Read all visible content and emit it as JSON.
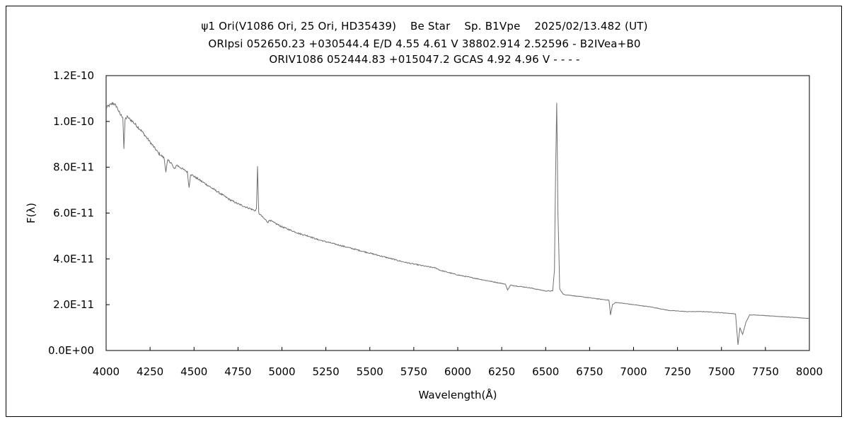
{
  "chart_data": {
    "type": "line",
    "title": "ψ1 Ori(V1086 Ori, 25 Ori, HD35439)    Be Star    Sp. B1Vpe    2025/02/13.482 (UT)",
    "subtitle_lines": [
      "ORIpsi 052650.23 +030544.4 E/D 4.55 4.61 V 38802.914 2.52596 - B2IVea+B0",
      "ORIV1086 052444.83 +015047.2 GCAS 4.92 4.96 V - - - -"
    ],
    "xlabel": "Wavelength(Å)",
    "ylabel": "F(λ)",
    "xlim": [
      4000,
      8000
    ],
    "ylim": [
      0,
      1.2e-10
    ],
    "x_ticks": [
      4000,
      4250,
      4500,
      4750,
      5000,
      5250,
      5500,
      5750,
      6000,
      6250,
      6500,
      6750,
      7000,
      7250,
      7500,
      7750,
      8000
    ],
    "x_tick_labels": [
      "4000",
      "4250",
      "4500",
      "4750",
      "5000",
      "5250",
      "5500",
      "5750",
      "6000",
      "6250",
      "6500",
      "6750",
      "7000",
      "7250",
      "7500",
      "7750",
      "8000"
    ],
    "y_ticks": [
      0,
      2e-11,
      4e-11,
      6e-11,
      8e-11,
      1e-10,
      1.2e-10
    ],
    "y_tick_labels": [
      "0.0E+00",
      "2.0E-11",
      "4.0E-11",
      "6.0E-11",
      "8.0E-11",
      "1.0E-10",
      "1.2E-10"
    ],
    "grid": false,
    "legend": "none",
    "line_color": "#707070",
    "series": [
      {
        "x": [
          4000,
          4020,
          4040,
          4060,
          4080,
          4095,
          4101,
          4108,
          4120,
          4150,
          4200,
          4250,
          4300,
          4330,
          4340,
          4350,
          4370,
          4388,
          4400,
          4440,
          4462,
          4472,
          4480,
          4500,
          4550,
          4600,
          4650,
          4700,
          4750,
          4800,
          4850,
          4855,
          4861,
          4868,
          4880,
          4900,
          4921,
          4930,
          4950,
          5000,
          5050,
          5100,
          5150,
          5200,
          5250,
          5300,
          5400,
          5500,
          5600,
          5700,
          5800,
          5876,
          5900,
          6000,
          6100,
          6200,
          6270,
          6284,
          6300,
          6400,
          6500,
          6540,
          6550,
          6556,
          6562.8,
          6570,
          6580,
          6600,
          6700,
          6800,
          6860,
          6869,
          6880,
          6900,
          7000,
          7100,
          7200,
          7300,
          7400,
          7500,
          7580,
          7594,
          7605,
          7620,
          7640,
          7660,
          7700,
          7800,
          7900,
          8000
        ],
        "y": [
          1.06e-10,
          1.07e-10,
          1.08e-10,
          1.065e-10,
          1.03e-10,
          1.02e-10,
          8.8e-11,
          1.01e-10,
          1.02e-10,
          1e-10,
          9.6e-11,
          9.1e-11,
          8.6e-11,
          8.4e-11,
          7.8e-11,
          8.3e-11,
          8.2e-11,
          7.9e-11,
          8.1e-11,
          7.9e-11,
          7.8e-11,
          7.1e-11,
          7.7e-11,
          7.6e-11,
          7.35e-11,
          7.1e-11,
          6.85e-11,
          6.6e-11,
          6.4e-11,
          6.25e-11,
          6.1e-11,
          6.2e-11,
          8e-11,
          6e-11,
          5.9e-11,
          5.75e-11,
          5.6e-11,
          5.7e-11,
          5.6e-11,
          5.4e-11,
          5.25e-11,
          5.1e-11,
          5e-11,
          4.85e-11,
          4.75e-11,
          4.65e-11,
          4.45e-11,
          4.25e-11,
          4.05e-11,
          3.85e-11,
          3.7e-11,
          3.6e-11,
          3.5e-11,
          3.3e-11,
          3.15e-11,
          3e-11,
          2.9e-11,
          2.65e-11,
          2.85e-11,
          2.75e-11,
          2.6e-11,
          2.6e-11,
          3.5e-11,
          7.5e-11,
          1.08e-10,
          6e-11,
          2.7e-11,
          2.45e-11,
          2.35e-11,
          2.25e-11,
          2.2e-11,
          1.55e-11,
          2e-11,
          2.1e-11,
          2e-11,
          1.9e-11,
          1.75e-11,
          1.7e-11,
          1.7e-11,
          1.65e-11,
          1.6e-11,
          2.5e-12,
          1e-11,
          7e-12,
          1.25e-11,
          1.55e-11,
          1.55e-11,
          1.5e-11,
          1.45e-11,
          1.4e-11
        ]
      }
    ]
  }
}
